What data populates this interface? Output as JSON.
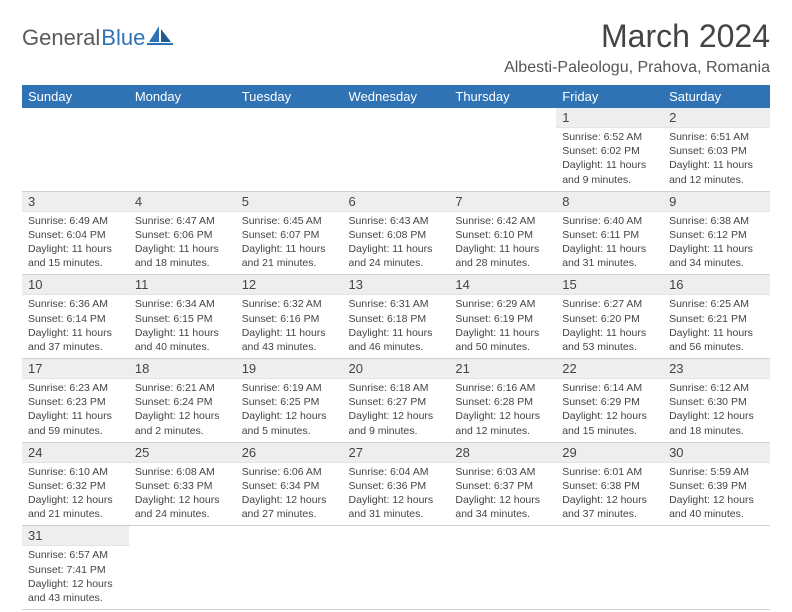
{
  "logo": {
    "text1": "General",
    "text2": "Blue"
  },
  "title": "March 2024",
  "location": "Albesti-Paleologu, Prahova, Romania",
  "daynames": [
    "Sunday",
    "Monday",
    "Tuesday",
    "Wednesday",
    "Thursday",
    "Friday",
    "Saturday"
  ],
  "colors": {
    "header_bg": "#2f73b5",
    "header_fg": "#ffffff",
    "daynum_bg": "#eeeeee",
    "text": "#444444",
    "logo_gray": "#5a5a5a",
    "logo_blue": "#2f73b5"
  },
  "weeks": [
    [
      {
        "n": "",
        "sr": "",
        "ss": "",
        "dl": ""
      },
      {
        "n": "",
        "sr": "",
        "ss": "",
        "dl": ""
      },
      {
        "n": "",
        "sr": "",
        "ss": "",
        "dl": ""
      },
      {
        "n": "",
        "sr": "",
        "ss": "",
        "dl": ""
      },
      {
        "n": "",
        "sr": "",
        "ss": "",
        "dl": ""
      },
      {
        "n": "1",
        "sr": "Sunrise: 6:52 AM",
        "ss": "Sunset: 6:02 PM",
        "dl": "Daylight: 11 hours and 9 minutes."
      },
      {
        "n": "2",
        "sr": "Sunrise: 6:51 AM",
        "ss": "Sunset: 6:03 PM",
        "dl": "Daylight: 11 hours and 12 minutes."
      }
    ],
    [
      {
        "n": "3",
        "sr": "Sunrise: 6:49 AM",
        "ss": "Sunset: 6:04 PM",
        "dl": "Daylight: 11 hours and 15 minutes."
      },
      {
        "n": "4",
        "sr": "Sunrise: 6:47 AM",
        "ss": "Sunset: 6:06 PM",
        "dl": "Daylight: 11 hours and 18 minutes."
      },
      {
        "n": "5",
        "sr": "Sunrise: 6:45 AM",
        "ss": "Sunset: 6:07 PM",
        "dl": "Daylight: 11 hours and 21 minutes."
      },
      {
        "n": "6",
        "sr": "Sunrise: 6:43 AM",
        "ss": "Sunset: 6:08 PM",
        "dl": "Daylight: 11 hours and 24 minutes."
      },
      {
        "n": "7",
        "sr": "Sunrise: 6:42 AM",
        "ss": "Sunset: 6:10 PM",
        "dl": "Daylight: 11 hours and 28 minutes."
      },
      {
        "n": "8",
        "sr": "Sunrise: 6:40 AM",
        "ss": "Sunset: 6:11 PM",
        "dl": "Daylight: 11 hours and 31 minutes."
      },
      {
        "n": "9",
        "sr": "Sunrise: 6:38 AM",
        "ss": "Sunset: 6:12 PM",
        "dl": "Daylight: 11 hours and 34 minutes."
      }
    ],
    [
      {
        "n": "10",
        "sr": "Sunrise: 6:36 AM",
        "ss": "Sunset: 6:14 PM",
        "dl": "Daylight: 11 hours and 37 minutes."
      },
      {
        "n": "11",
        "sr": "Sunrise: 6:34 AM",
        "ss": "Sunset: 6:15 PM",
        "dl": "Daylight: 11 hours and 40 minutes."
      },
      {
        "n": "12",
        "sr": "Sunrise: 6:32 AM",
        "ss": "Sunset: 6:16 PM",
        "dl": "Daylight: 11 hours and 43 minutes."
      },
      {
        "n": "13",
        "sr": "Sunrise: 6:31 AM",
        "ss": "Sunset: 6:18 PM",
        "dl": "Daylight: 11 hours and 46 minutes."
      },
      {
        "n": "14",
        "sr": "Sunrise: 6:29 AM",
        "ss": "Sunset: 6:19 PM",
        "dl": "Daylight: 11 hours and 50 minutes."
      },
      {
        "n": "15",
        "sr": "Sunrise: 6:27 AM",
        "ss": "Sunset: 6:20 PM",
        "dl": "Daylight: 11 hours and 53 minutes."
      },
      {
        "n": "16",
        "sr": "Sunrise: 6:25 AM",
        "ss": "Sunset: 6:21 PM",
        "dl": "Daylight: 11 hours and 56 minutes."
      }
    ],
    [
      {
        "n": "17",
        "sr": "Sunrise: 6:23 AM",
        "ss": "Sunset: 6:23 PM",
        "dl": "Daylight: 11 hours and 59 minutes."
      },
      {
        "n": "18",
        "sr": "Sunrise: 6:21 AM",
        "ss": "Sunset: 6:24 PM",
        "dl": "Daylight: 12 hours and 2 minutes."
      },
      {
        "n": "19",
        "sr": "Sunrise: 6:19 AM",
        "ss": "Sunset: 6:25 PM",
        "dl": "Daylight: 12 hours and 5 minutes."
      },
      {
        "n": "20",
        "sr": "Sunrise: 6:18 AM",
        "ss": "Sunset: 6:27 PM",
        "dl": "Daylight: 12 hours and 9 minutes."
      },
      {
        "n": "21",
        "sr": "Sunrise: 6:16 AM",
        "ss": "Sunset: 6:28 PM",
        "dl": "Daylight: 12 hours and 12 minutes."
      },
      {
        "n": "22",
        "sr": "Sunrise: 6:14 AM",
        "ss": "Sunset: 6:29 PM",
        "dl": "Daylight: 12 hours and 15 minutes."
      },
      {
        "n": "23",
        "sr": "Sunrise: 6:12 AM",
        "ss": "Sunset: 6:30 PM",
        "dl": "Daylight: 12 hours and 18 minutes."
      }
    ],
    [
      {
        "n": "24",
        "sr": "Sunrise: 6:10 AM",
        "ss": "Sunset: 6:32 PM",
        "dl": "Daylight: 12 hours and 21 minutes."
      },
      {
        "n": "25",
        "sr": "Sunrise: 6:08 AM",
        "ss": "Sunset: 6:33 PM",
        "dl": "Daylight: 12 hours and 24 minutes."
      },
      {
        "n": "26",
        "sr": "Sunrise: 6:06 AM",
        "ss": "Sunset: 6:34 PM",
        "dl": "Daylight: 12 hours and 27 minutes."
      },
      {
        "n": "27",
        "sr": "Sunrise: 6:04 AM",
        "ss": "Sunset: 6:36 PM",
        "dl": "Daylight: 12 hours and 31 minutes."
      },
      {
        "n": "28",
        "sr": "Sunrise: 6:03 AM",
        "ss": "Sunset: 6:37 PM",
        "dl": "Daylight: 12 hours and 34 minutes."
      },
      {
        "n": "29",
        "sr": "Sunrise: 6:01 AM",
        "ss": "Sunset: 6:38 PM",
        "dl": "Daylight: 12 hours and 37 minutes."
      },
      {
        "n": "30",
        "sr": "Sunrise: 5:59 AM",
        "ss": "Sunset: 6:39 PM",
        "dl": "Daylight: 12 hours and 40 minutes."
      }
    ],
    [
      {
        "n": "31",
        "sr": "Sunrise: 6:57 AM",
        "ss": "Sunset: 7:41 PM",
        "dl": "Daylight: 12 hours and 43 minutes."
      },
      {
        "n": "",
        "sr": "",
        "ss": "",
        "dl": ""
      },
      {
        "n": "",
        "sr": "",
        "ss": "",
        "dl": ""
      },
      {
        "n": "",
        "sr": "",
        "ss": "",
        "dl": ""
      },
      {
        "n": "",
        "sr": "",
        "ss": "",
        "dl": ""
      },
      {
        "n": "",
        "sr": "",
        "ss": "",
        "dl": ""
      },
      {
        "n": "",
        "sr": "",
        "ss": "",
        "dl": ""
      }
    ]
  ]
}
